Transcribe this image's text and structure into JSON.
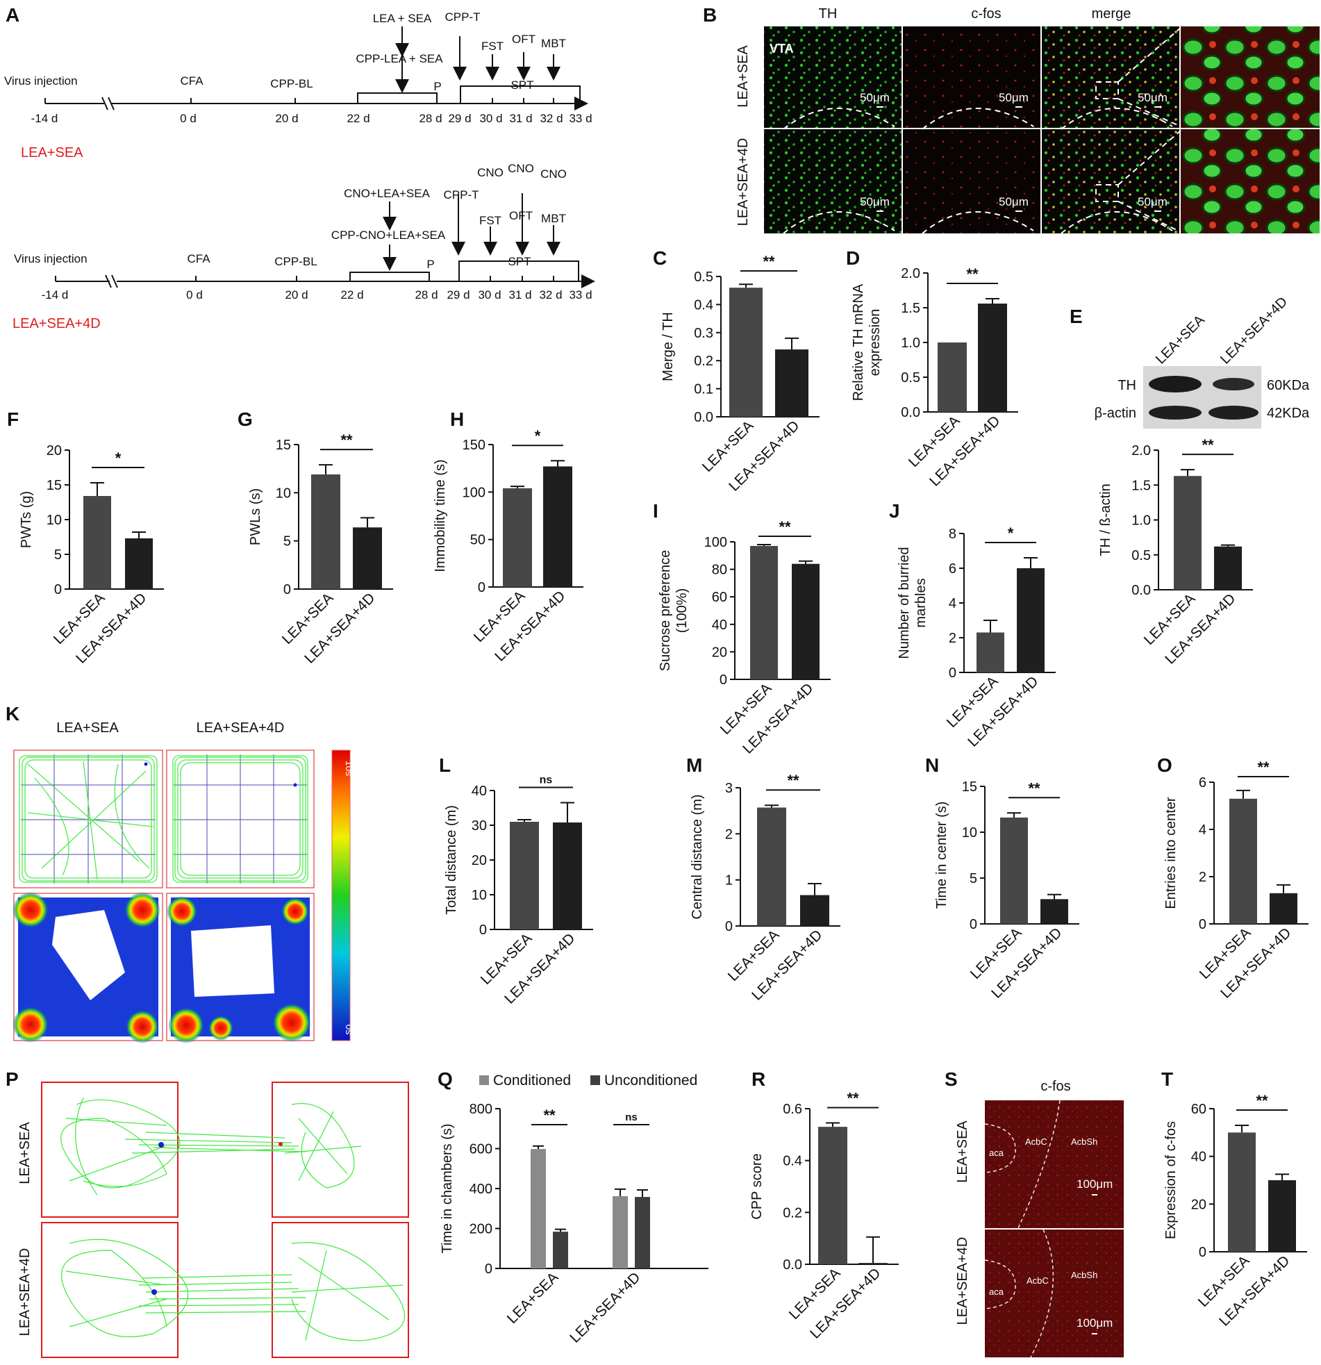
{
  "panel_letters": {
    "A": "A",
    "B": "B",
    "C": "C",
    "D": "D",
    "E": "E",
    "F": "F",
    "G": "G",
    "H": "H",
    "I": "I",
    "J": "J",
    "K": "K",
    "L": "L",
    "M": "M",
    "N": "N",
    "O": "O",
    "P": "P",
    "Q": "Q",
    "R": "R",
    "S": "S",
    "T": "T"
  },
  "groups": {
    "g1": "LEA+SEA",
    "g2": "LEA+SEA+4D"
  },
  "timeline_1": {
    "days": [
      "-14 d",
      "0 d",
      "20 d",
      "22 d",
      "28 d",
      "29 d",
      "30 d",
      "31 d",
      "32 d",
      "33 d"
    ],
    "labels": {
      "virus": "Virus injection",
      "cfa": "CFA",
      "cppbl": "CPP-BL",
      "cond": "LEA + SEA",
      "cppcond": "CPP-LEA + SEA",
      "cppt": "CPP-T",
      "p": "P",
      "fst": "FST",
      "oft": "OFT",
      "mbt": "MBT",
      "spt": "SPT"
    },
    "group": "LEA+SEA"
  },
  "timeline_2": {
    "days": [
      "-14 d",
      "0 d",
      "20 d",
      "22 d",
      "28 d",
      "29 d",
      "30 d",
      "31 d",
      "32 d",
      "33 d"
    ],
    "labels": {
      "virus": "Virus injection",
      "cfa": "CFA",
      "cppbl": "CPP-BL",
      "cond": "CNO+LEA+SEA",
      "cppcond": "CPP-CNO+LEA+SEA",
      "cppt": "CPP-T",
      "p": "P",
      "fst": "FST",
      "oft": "OFT",
      "mbt": "MBT",
      "spt": "SPT",
      "cno": "CNO"
    },
    "group": "LEA+SEA+4D"
  },
  "panel_B": {
    "col_headers": [
      "TH",
      "c-fos",
      "merge"
    ],
    "region": "VTA",
    "scale": "50μm",
    "rows": [
      "LEA+SEA",
      "LEA+SEA+4D"
    ],
    "colors": {
      "th": "#22c322",
      "cfos": "#d42222"
    }
  },
  "panel_E": {
    "blot_cols": [
      "LEA+SEA",
      "LEA+SEA+4D"
    ],
    "rows": [
      "TH",
      "β-actin"
    ],
    "sizes": [
      "60KDa",
      "42KDa"
    ]
  },
  "panel_K": {
    "cols": [
      "LEA+SEA",
      "LEA+SEA+4D"
    ],
    "colorbar": {
      "top": "10s",
      "bottom": "0s"
    }
  },
  "panel_P": {
    "rows": [
      "LEA+SEA",
      "LEA+SEA+4D"
    ]
  },
  "panel_S": {
    "title": "c-fos",
    "rows": [
      "LEA+SEA",
      "LEA+SEA+4D"
    ],
    "regions": [
      "aca",
      "AcbC",
      "AcbSh"
    ],
    "scale": "100μm"
  },
  "chart_data": [
    {
      "id": "C",
      "type": "bar",
      "categories": [
        "LEA+SEA",
        "LEA+SEA+4D"
      ],
      "values": [
        0.46,
        0.24
      ],
      "errors": [
        0.012,
        0.04
      ],
      "ylabel": [
        "Merge / TH"
      ],
      "ylim": [
        0,
        0.5
      ],
      "ticks": [
        "0.0",
        "0.1",
        "0.2",
        "0.3",
        "0.4",
        "0.5"
      ],
      "sig": "**"
    },
    {
      "id": "D",
      "type": "bar",
      "categories": [
        "LEA+SEA",
        "LEA+SEA+4D"
      ],
      "values": [
        1.0,
        1.56
      ],
      "errors": [
        0,
        0.07
      ],
      "ylabel": [
        "Relative TH mRNA",
        "expression"
      ],
      "ylim": [
        0,
        2.0
      ],
      "ticks": [
        "0.0",
        "0.5",
        "1.0",
        "1.5",
        "2.0"
      ],
      "sig": "**"
    },
    {
      "id": "E",
      "type": "bar",
      "categories": [
        "LEA+SEA",
        "LEA+SEA+4D"
      ],
      "values": [
        1.63,
        0.62
      ],
      "errors": [
        0.09,
        0.02
      ],
      "ylabel": [
        "TH / ß-actin"
      ],
      "ylim": [
        0,
        2.0
      ],
      "ticks": [
        "0.0",
        "0.5",
        "1.0",
        "1.5",
        "2.0"
      ],
      "sig": "**"
    },
    {
      "id": "F",
      "type": "bar",
      "categories": [
        "LEA+SEA",
        "LEA+SEA+4D"
      ],
      "values": [
        13.4,
        7.3
      ],
      "errors": [
        1.9,
        0.9
      ],
      "ylabel": [
        "PWTs (g)"
      ],
      "ylim": [
        0,
        20
      ],
      "ticks": [
        "0",
        "5",
        "10",
        "15",
        "20"
      ],
      "sig": "*"
    },
    {
      "id": "G",
      "type": "bar",
      "categories": [
        "LEA+SEA",
        "LEA+SEA+4D"
      ],
      "values": [
        11.9,
        6.4
      ],
      "errors": [
        1.0,
        1.0
      ],
      "ylabel": [
        "PWLs (s)"
      ],
      "ylim": [
        0,
        15
      ],
      "ticks": [
        "0",
        "5",
        "10",
        "15"
      ],
      "sig": "**"
    },
    {
      "id": "H",
      "type": "bar",
      "categories": [
        "LEA+SEA",
        "LEA+SEA+4D"
      ],
      "values": [
        104,
        127
      ],
      "errors": [
        2,
        6
      ],
      "ylabel": [
        "Immobility time (s)"
      ],
      "ylim": [
        0,
        150
      ],
      "ticks": [
        "0",
        "50",
        "100",
        "150"
      ],
      "sig": "*"
    },
    {
      "id": "I",
      "type": "bar",
      "categories": [
        "LEA+SEA",
        "LEA+SEA+4D"
      ],
      "values": [
        97,
        84
      ],
      "errors": [
        1,
        2
      ],
      "ylabel": [
        "Sucrose preference",
        "(100%)"
      ],
      "ylim": [
        0,
        100
      ],
      "ticks": [
        "0",
        "20",
        "40",
        "60",
        "80",
        "100"
      ],
      "sig": "**"
    },
    {
      "id": "J",
      "type": "bar",
      "categories": [
        "LEA+SEA",
        "LEA+SEA+4D"
      ],
      "values": [
        2.3,
        6.0
      ],
      "errors": [
        0.7,
        0.6
      ],
      "ylabel": [
        "Number of burried",
        "marbles"
      ],
      "ylim": [
        0,
        8
      ],
      "ticks": [
        "0",
        "2",
        "4",
        "6",
        "8"
      ],
      "sig": "*"
    },
    {
      "id": "L",
      "type": "bar",
      "categories": [
        "LEA+SEA",
        "LEA+SEA+4D"
      ],
      "values": [
        31,
        30.8
      ],
      "errors": [
        0.6,
        5.7
      ],
      "ylabel": [
        "Total distance (m)"
      ],
      "ylim": [
        0,
        40
      ],
      "ticks": [
        "0",
        "10",
        "20",
        "30",
        "40"
      ],
      "sig": "ns"
    },
    {
      "id": "M",
      "type": "bar",
      "categories": [
        "LEA+SEA",
        "LEA+SEA+4D"
      ],
      "values": [
        2.57,
        0.67
      ],
      "errors": [
        0.05,
        0.25
      ],
      "ylabel": [
        "Central distance (m)"
      ],
      "ylim": [
        0,
        3
      ],
      "ticks": [
        "0",
        "1",
        "2",
        "3"
      ],
      "sig": "**"
    },
    {
      "id": "N",
      "type": "bar",
      "categories": [
        "LEA+SEA",
        "LEA+SEA+4D"
      ],
      "values": [
        11.6,
        2.7
      ],
      "errors": [
        0.5,
        0.5
      ],
      "ylabel": [
        "Time in center (s)"
      ],
      "ylim": [
        0,
        15
      ],
      "ticks": [
        "0",
        "5",
        "10",
        "15"
      ],
      "sig": "**"
    },
    {
      "id": "O",
      "type": "bar",
      "categories": [
        "LEA+SEA",
        "LEA+SEA+4D"
      ],
      "values": [
        5.3,
        1.3
      ],
      "errors": [
        0.35,
        0.35
      ],
      "ylabel": [
        "Entries into center"
      ],
      "ylim": [
        0,
        6
      ],
      "ticks": [
        "0",
        "2",
        "4",
        "6"
      ],
      "sig": "**"
    },
    {
      "id": "Q",
      "type": "bar",
      "categories": [
        "LEA+SEA",
        "LEA+SEA+4D"
      ],
      "series": [
        {
          "name": "Conditioned",
          "values": [
            598,
            362
          ],
          "errors": [
            15,
            35
          ]
        },
        {
          "name": "Unconditioned",
          "values": [
            184,
            358
          ],
          "errors": [
            12,
            35
          ]
        }
      ],
      "ylabel": [
        "Time in chambers (s)"
      ],
      "ylim": [
        0,
        800
      ],
      "ticks": [
        "0",
        "200",
        "400",
        "600",
        "800"
      ],
      "sig": [
        "**",
        "ns"
      ],
      "legend": "top"
    },
    {
      "id": "R",
      "type": "bar",
      "categories": [
        "LEA+SEA",
        "LEA+SEA+4D"
      ],
      "values": [
        0.53,
        0.005
      ],
      "errors": [
        0.015,
        0.1
      ],
      "ylabel": [
        "CPP score"
      ],
      "ylim": [
        0,
        0.6
      ],
      "ticks": [
        "0.0",
        "0.2",
        "0.4",
        "0.6"
      ],
      "sig": "**"
    },
    {
      "id": "T",
      "type": "bar",
      "categories": [
        "LEA+SEA",
        "LEA+SEA+4D"
      ],
      "values": [
        50,
        30
      ],
      "errors": [
        3,
        2.5
      ],
      "ylabel": [
        "Expression of c-fos"
      ],
      "ylim": [
        0,
        60
      ],
      "ticks": [
        "0",
        "20",
        "40",
        "60"
      ],
      "sig": "**"
    }
  ],
  "colors": {
    "bar1": "#474747",
    "bar2": "#1f1f1f",
    "q1": "#8a8a8a",
    "q2": "#3e3e3e",
    "red": "#e01b1b",
    "track": "#3be83b"
  }
}
